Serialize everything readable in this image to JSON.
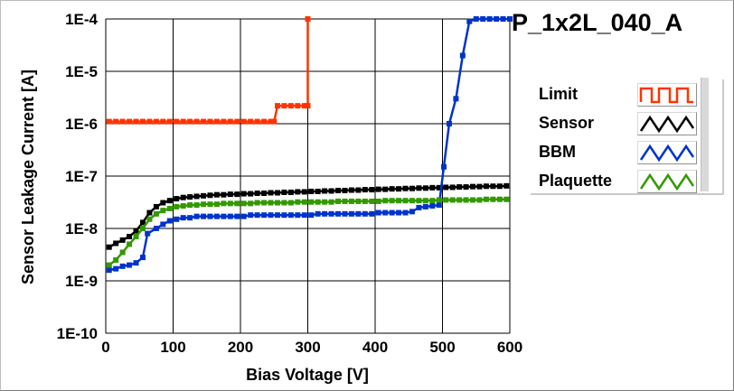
{
  "chart_data": {
    "type": "line",
    "title": "P_1x2L_040_A",
    "xlabel": "Bias Voltage [V]",
    "ylabel": "Sensor Leakage Current [A]",
    "xlim": [
      0,
      600
    ],
    "ylim": [
      1e-10,
      0.0001
    ],
    "yscale": "log",
    "x_ticks": [
      0,
      100,
      200,
      300,
      400,
      500,
      600
    ],
    "x_tick_labels": [
      "0",
      "100",
      "200",
      "300",
      "400",
      "500",
      "600"
    ],
    "y_ticks": [
      0.0001,
      1e-05,
      1e-06,
      1e-07,
      1e-08,
      1e-09,
      1e-10
    ],
    "y_tick_labels": [
      "1E-4",
      "1E-5",
      "1E-6",
      "1E-7",
      "1E-8",
      "1E-9",
      "1E-10"
    ],
    "grid": true,
    "legend_position": "right",
    "series": [
      {
        "name": "Limit",
        "color": "#ff3300",
        "points": [
          [
            5,
            1.1e-06
          ],
          [
            15,
            1.1e-06
          ],
          [
            25,
            1.1e-06
          ],
          [
            35,
            1.1e-06
          ],
          [
            45,
            1.1e-06
          ],
          [
            55,
            1.1e-06
          ],
          [
            65,
            1.1e-06
          ],
          [
            75,
            1.1e-06
          ],
          [
            85,
            1.1e-06
          ],
          [
            95,
            1.1e-06
          ],
          [
            105,
            1.1e-06
          ],
          [
            115,
            1.1e-06
          ],
          [
            125,
            1.1e-06
          ],
          [
            135,
            1.1e-06
          ],
          [
            145,
            1.1e-06
          ],
          [
            155,
            1.1e-06
          ],
          [
            165,
            1.1e-06
          ],
          [
            175,
            1.1e-06
          ],
          [
            185,
            1.1e-06
          ],
          [
            195,
            1.1e-06
          ],
          [
            205,
            1.1e-06
          ],
          [
            215,
            1.1e-06
          ],
          [
            225,
            1.1e-06
          ],
          [
            235,
            1.1e-06
          ],
          [
            245,
            1.1e-06
          ],
          [
            250,
            1.1e-06
          ],
          [
            255,
            2.2e-06
          ],
          [
            265,
            2.2e-06
          ],
          [
            275,
            2.2e-06
          ],
          [
            285,
            2.2e-06
          ],
          [
            295,
            2.2e-06
          ],
          [
            300,
            2.2e-06
          ],
          [
            300,
            0.0001
          ]
        ]
      },
      {
        "name": "Sensor",
        "color": "#000000",
        "points": [
          [
            5,
            4.4e-09
          ],
          [
            15,
            5.2e-09
          ],
          [
            25,
            6e-09
          ],
          [
            35,
            7e-09
          ],
          [
            45,
            9e-09
          ],
          [
            55,
            1.3e-08
          ],
          [
            65,
            2e-08
          ],
          [
            75,
            2.6e-08
          ],
          [
            85,
            3.1e-08
          ],
          [
            95,
            3.4e-08
          ],
          [
            105,
            3.7e-08
          ],
          [
            115,
            3.9e-08
          ],
          [
            125,
            4e-08
          ],
          [
            135,
            4.1e-08
          ],
          [
            145,
            4.2e-08
          ],
          [
            155,
            4.3e-08
          ],
          [
            165,
            4.4e-08
          ],
          [
            175,
            4.4e-08
          ],
          [
            185,
            4.5e-08
          ],
          [
            195,
            4.5e-08
          ],
          [
            205,
            4.6e-08
          ],
          [
            215,
            4.6e-08
          ],
          [
            225,
            4.7e-08
          ],
          [
            235,
            4.7e-08
          ],
          [
            245,
            4.8e-08
          ],
          [
            255,
            4.8e-08
          ],
          [
            265,
            4.9e-08
          ],
          [
            275,
            4.9e-08
          ],
          [
            285,
            5e-08
          ],
          [
            295,
            5e-08
          ],
          [
            305,
            5.1e-08
          ],
          [
            315,
            5.1e-08
          ],
          [
            325,
            5.2e-08
          ],
          [
            335,
            5.2e-08
          ],
          [
            345,
            5.3e-08
          ],
          [
            355,
            5.3e-08
          ],
          [
            365,
            5.4e-08
          ],
          [
            375,
            5.4e-08
          ],
          [
            385,
            5.5e-08
          ],
          [
            395,
            5.5e-08
          ],
          [
            405,
            5.6e-08
          ],
          [
            415,
            5.6e-08
          ],
          [
            425,
            5.7e-08
          ],
          [
            435,
            5.7e-08
          ],
          [
            445,
            5.8e-08
          ],
          [
            455,
            5.8e-08
          ],
          [
            465,
            5.9e-08
          ],
          [
            475,
            5.9e-08
          ],
          [
            485,
            6e-08
          ],
          [
            495,
            6e-08
          ],
          [
            505,
            6.1e-08
          ],
          [
            515,
            6.1e-08
          ],
          [
            525,
            6.2e-08
          ],
          [
            535,
            6.2e-08
          ],
          [
            545,
            6.3e-08
          ],
          [
            555,
            6.3e-08
          ],
          [
            565,
            6.4e-08
          ],
          [
            575,
            6.4e-08
          ],
          [
            585,
            6.4e-08
          ],
          [
            595,
            6.5e-08
          ]
        ]
      },
      {
        "name": "BBM",
        "color": "#0033cc",
        "points": [
          [
            5,
            1.6e-09
          ],
          [
            15,
            1.7e-09
          ],
          [
            25,
            1.9e-09
          ],
          [
            35,
            2e-09
          ],
          [
            45,
            2.2e-09
          ],
          [
            55,
            2.8e-09
          ],
          [
            62,
            8e-09
          ],
          [
            75,
            1e-08
          ],
          [
            85,
            1.2e-08
          ],
          [
            95,
            1.4e-08
          ],
          [
            105,
            1.5e-08
          ],
          [
            115,
            1.6e-08
          ],
          [
            125,
            1.6e-08
          ],
          [
            135,
            1.7e-08
          ],
          [
            145,
            1.7e-08
          ],
          [
            155,
            1.7e-08
          ],
          [
            165,
            1.7e-08
          ],
          [
            175,
            1.7e-08
          ],
          [
            185,
            1.7e-08
          ],
          [
            195,
            1.7e-08
          ],
          [
            205,
            1.7e-08
          ],
          [
            215,
            1.8e-08
          ],
          [
            225,
            1.8e-08
          ],
          [
            235,
            1.8e-08
          ],
          [
            245,
            1.8e-08
          ],
          [
            255,
            1.8e-08
          ],
          [
            265,
            1.8e-08
          ],
          [
            275,
            1.8e-08
          ],
          [
            285,
            1.8e-08
          ],
          [
            295,
            1.8e-08
          ],
          [
            305,
            1.8e-08
          ],
          [
            315,
            1.9e-08
          ],
          [
            325,
            1.9e-08
          ],
          [
            335,
            1.9e-08
          ],
          [
            345,
            1.9e-08
          ],
          [
            355,
            1.9e-08
          ],
          [
            365,
            1.9e-08
          ],
          [
            375,
            1.9e-08
          ],
          [
            385,
            1.9e-08
          ],
          [
            395,
            1.9e-08
          ],
          [
            405,
            2e-08
          ],
          [
            415,
            2e-08
          ],
          [
            425,
            2e-08
          ],
          [
            435,
            2e-08
          ],
          [
            445,
            2e-08
          ],
          [
            455,
            2.1e-08
          ],
          [
            465,
            2.5e-08
          ],
          [
            475,
            2.6e-08
          ],
          [
            485,
            2.7e-08
          ],
          [
            495,
            2.8e-08
          ],
          [
            502,
            1.5e-07
          ],
          [
            510,
            1e-06
          ],
          [
            520,
            3e-06
          ],
          [
            530,
            2e-05
          ],
          [
            540,
            9e-05
          ],
          [
            550,
            0.0001
          ],
          [
            560,
            0.0001
          ],
          [
            570,
            0.0001
          ],
          [
            580,
            0.0001
          ],
          [
            590,
            0.0001
          ],
          [
            600,
            0.0001
          ]
        ]
      },
      {
        "name": "Plaquette",
        "color": "#339900",
        "points": [
          [
            5,
            2e-09
          ],
          [
            15,
            2.5e-09
          ],
          [
            25,
            3.5e-09
          ],
          [
            35,
            5e-09
          ],
          [
            45,
            7e-09
          ],
          [
            55,
            1e-08
          ],
          [
            65,
            1.5e-08
          ],
          [
            75,
            1.9e-08
          ],
          [
            85,
            2.2e-08
          ],
          [
            95,
            2.4e-08
          ],
          [
            105,
            2.6e-08
          ],
          [
            115,
            2.7e-08
          ],
          [
            125,
            2.8e-08
          ],
          [
            135,
            2.8e-08
          ],
          [
            145,
            2.9e-08
          ],
          [
            155,
            2.9e-08
          ],
          [
            165,
            2.9e-08
          ],
          [
            175,
            3e-08
          ],
          [
            185,
            3e-08
          ],
          [
            195,
            3e-08
          ],
          [
            205,
            3e-08
          ],
          [
            215,
            3e-08
          ],
          [
            225,
            3.1e-08
          ],
          [
            235,
            3.1e-08
          ],
          [
            245,
            3.1e-08
          ],
          [
            255,
            3.1e-08
          ],
          [
            265,
            3.1e-08
          ],
          [
            275,
            3.1e-08
          ],
          [
            285,
            3.2e-08
          ],
          [
            295,
            3.2e-08
          ],
          [
            305,
            3.2e-08
          ],
          [
            315,
            3.2e-08
          ],
          [
            325,
            3.2e-08
          ],
          [
            335,
            3.2e-08
          ],
          [
            345,
            3.3e-08
          ],
          [
            355,
            3.3e-08
          ],
          [
            365,
            3.3e-08
          ],
          [
            375,
            3.3e-08
          ],
          [
            385,
            3.3e-08
          ],
          [
            395,
            3.3e-08
          ],
          [
            405,
            3.3e-08
          ],
          [
            415,
            3.4e-08
          ],
          [
            425,
            3.4e-08
          ],
          [
            435,
            3.4e-08
          ],
          [
            445,
            3.4e-08
          ],
          [
            455,
            3.4e-08
          ],
          [
            465,
            3.4e-08
          ],
          [
            475,
            3.4e-08
          ],
          [
            485,
            3.4e-08
          ],
          [
            495,
            3.5e-08
          ],
          [
            505,
            3.5e-08
          ],
          [
            515,
            3.5e-08
          ],
          [
            525,
            3.5e-08
          ],
          [
            535,
            3.5e-08
          ],
          [
            545,
            3.5e-08
          ],
          [
            555,
            3.5e-08
          ],
          [
            565,
            3.6e-08
          ],
          [
            575,
            3.6e-08
          ],
          [
            585,
            3.6e-08
          ],
          [
            595,
            3.6e-08
          ]
        ]
      }
    ]
  }
}
